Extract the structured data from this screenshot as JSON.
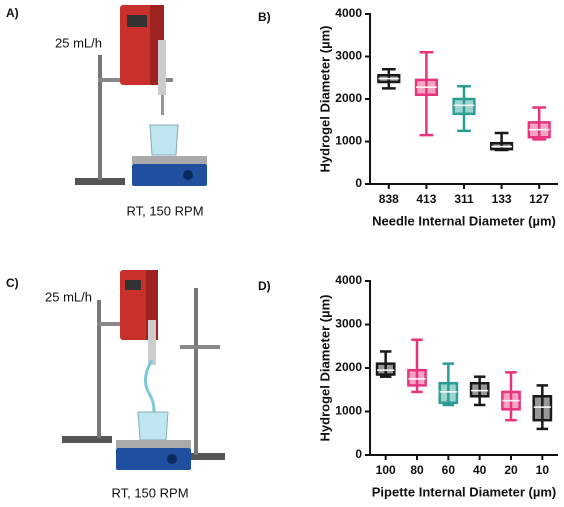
{
  "panels": [
    {
      "label": "A)",
      "rate": "25 mL/h",
      "condition": "RT, 150 RPM"
    },
    {
      "label": "C)",
      "rate": "25 mL/h",
      "condition": "RT, 150 RPM"
    }
  ],
  "chart_data": [
    {
      "type": "box",
      "panel_label": "B)",
      "x_label": "Needle Internal Diameter (µm)",
      "y_label": "Hydrogel Diameter (µm)",
      "categories": [
        "838",
        "413",
        "311",
        "133",
        "127"
      ],
      "colors": [
        "#1a1a1a",
        "#e8337f",
        "#2a9d95",
        "#1a1a1a",
        "#e8337f"
      ],
      "min": [
        2250,
        1150,
        1250,
        800,
        1050
      ],
      "q1": [
        2400,
        2100,
        1650,
        820,
        1100
      ],
      "median": [
        2480,
        2280,
        1850,
        880,
        1280
      ],
      "q3": [
        2560,
        2450,
        2000,
        960,
        1450
      ],
      "max": [
        2700,
        3100,
        2300,
        1200,
        1800
      ],
      "ylim": [
        0,
        4000
      ],
      "yticks": [
        0,
        1000,
        2000,
        3000,
        4000
      ]
    },
    {
      "type": "box",
      "panel_label": "D)",
      "x_label": "Pipette Internal Diameter (µm)",
      "y_label": "Hydrogel Diameter (µm)",
      "categories": [
        "100",
        "80",
        "60",
        "40",
        "20",
        "10"
      ],
      "colors": [
        "#1a1a1a",
        "#e8337f",
        "#2a9d95",
        "#1a1a1a",
        "#e8337f",
        "#1a1a1a"
      ],
      "min": [
        1800,
        1450,
        1150,
        1150,
        800,
        600
      ],
      "q1": [
        1850,
        1600,
        1200,
        1350,
        1050,
        800
      ],
      "median": [
        1950,
        1750,
        1450,
        1480,
        1250,
        1100
      ],
      "q3": [
        2100,
        1950,
        1650,
        1650,
        1450,
        1350
      ],
      "max": [
        2380,
        2650,
        2100,
        1800,
        1900,
        1600
      ],
      "ylim": [
        0,
        4000
      ],
      "yticks": [
        0,
        1000,
        2000,
        3000,
        4000
      ]
    }
  ]
}
